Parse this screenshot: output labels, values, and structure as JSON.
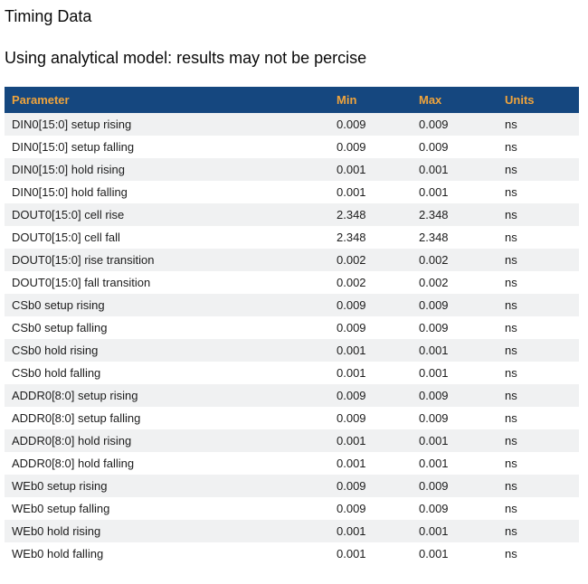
{
  "page": {
    "title": "Timing Data",
    "subtitle": "Using analytical model: results may not be percise"
  },
  "table": {
    "columns": [
      {
        "key": "parameter",
        "label": "Parameter"
      },
      {
        "key": "min",
        "label": "Min"
      },
      {
        "key": "max",
        "label": "Max"
      },
      {
        "key": "units",
        "label": "Units"
      }
    ],
    "rows": [
      {
        "parameter": "DIN0[15:0] setup rising",
        "min": "0.009",
        "max": "0.009",
        "units": "ns"
      },
      {
        "parameter": "DIN0[15:0] setup falling",
        "min": "0.009",
        "max": "0.009",
        "units": "ns"
      },
      {
        "parameter": "DIN0[15:0] hold rising",
        "min": "0.001",
        "max": "0.001",
        "units": "ns"
      },
      {
        "parameter": "DIN0[15:0] hold falling",
        "min": "0.001",
        "max": "0.001",
        "units": "ns"
      },
      {
        "parameter": "DOUT0[15:0] cell rise",
        "min": "2.348",
        "max": "2.348",
        "units": "ns"
      },
      {
        "parameter": "DOUT0[15:0] cell fall",
        "min": "2.348",
        "max": "2.348",
        "units": "ns"
      },
      {
        "parameter": "DOUT0[15:0] rise transition",
        "min": "0.002",
        "max": "0.002",
        "units": "ns"
      },
      {
        "parameter": "DOUT0[15:0] fall transition",
        "min": "0.002",
        "max": "0.002",
        "units": "ns"
      },
      {
        "parameter": "CSb0 setup rising",
        "min": "0.009",
        "max": "0.009",
        "units": "ns"
      },
      {
        "parameter": "CSb0 setup falling",
        "min": "0.009",
        "max": "0.009",
        "units": "ns"
      },
      {
        "parameter": "CSb0 hold rising",
        "min": "0.001",
        "max": "0.001",
        "units": "ns"
      },
      {
        "parameter": "CSb0 hold falling",
        "min": "0.001",
        "max": "0.001",
        "units": "ns"
      },
      {
        "parameter": "ADDR0[8:0] setup rising",
        "min": "0.009",
        "max": "0.009",
        "units": "ns"
      },
      {
        "parameter": "ADDR0[8:0] setup falling",
        "min": "0.009",
        "max": "0.009",
        "units": "ns"
      },
      {
        "parameter": "ADDR0[8:0] hold rising",
        "min": "0.001",
        "max": "0.001",
        "units": "ns"
      },
      {
        "parameter": "ADDR0[8:0] hold falling",
        "min": "0.001",
        "max": "0.001",
        "units": "ns"
      },
      {
        "parameter": "WEb0 setup rising",
        "min": "0.009",
        "max": "0.009",
        "units": "ns"
      },
      {
        "parameter": "WEb0 setup falling",
        "min": "0.009",
        "max": "0.009",
        "units": "ns"
      },
      {
        "parameter": "WEb0 hold rising",
        "min": "0.001",
        "max": "0.001",
        "units": "ns"
      },
      {
        "parameter": "WEb0 hold falling",
        "min": "0.001",
        "max": "0.001",
        "units": "ns"
      }
    ]
  },
  "colors": {
    "header_bg": "#15477f",
    "header_text": "#f0a43c",
    "row_stripe": "#f0f1f2",
    "row_alt": "#ffffff",
    "body_text": "#1c1c1c"
  }
}
